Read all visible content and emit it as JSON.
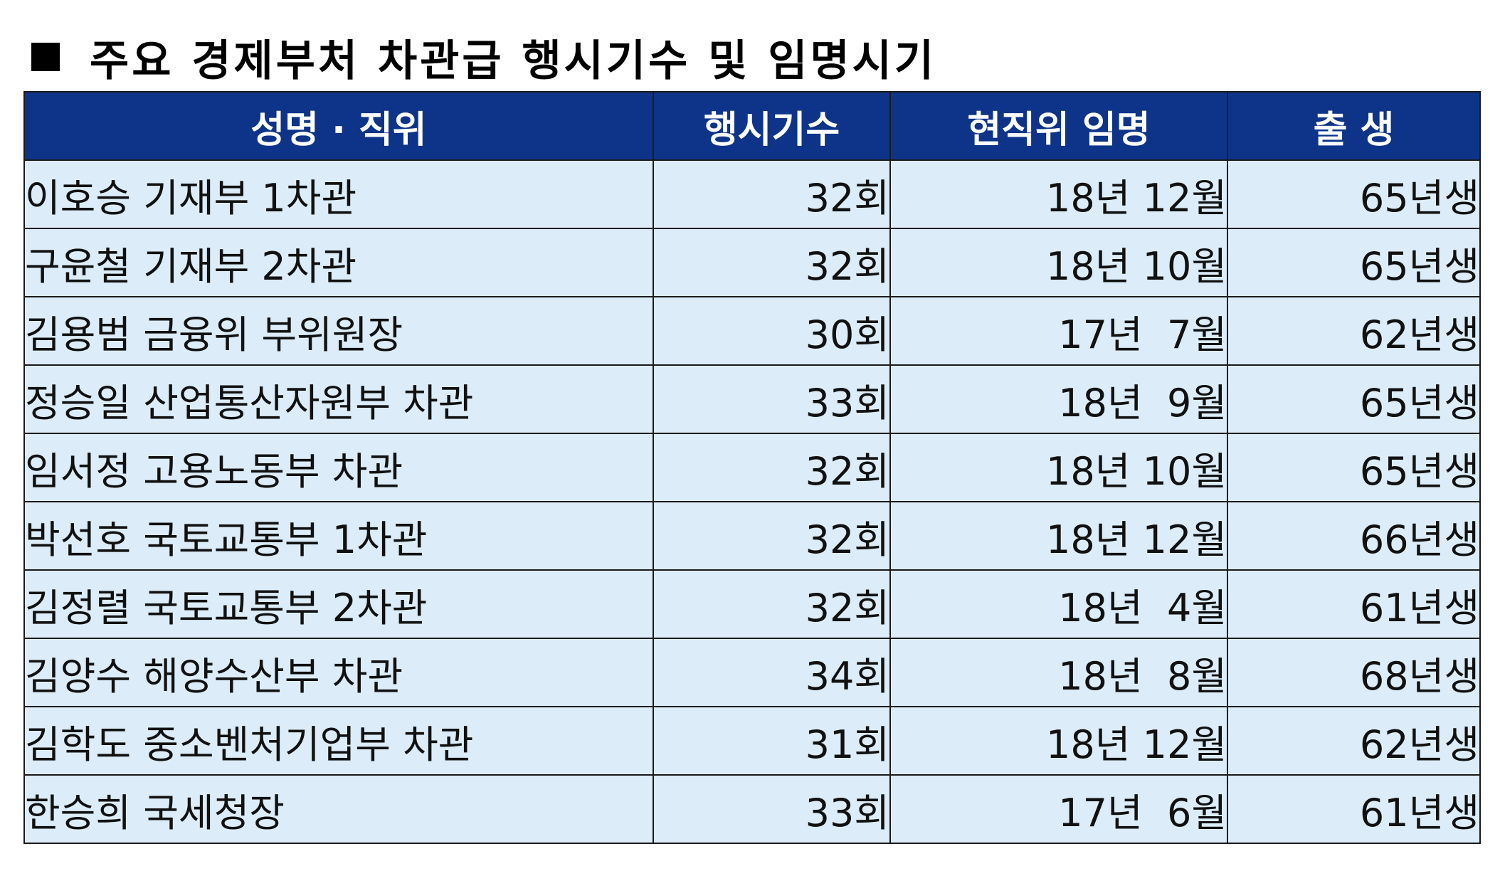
{
  "title": "주요 경제부처 차관급 행시기수 및 임명시기",
  "table": {
    "headers": [
      "성명 · 직위",
      "행시기수",
      "현직위 임명",
      "출 생"
    ],
    "rows": [
      {
        "name": "이호승 기재부 1차관",
        "exam": "32회",
        "appointed": "18년 12월",
        "born": "65년생"
      },
      {
        "name": "구윤철 기재부 2차관",
        "exam": "32회",
        "appointed": "18년 10월",
        "born": "65년생"
      },
      {
        "name": "김용범 금융위 부위원장",
        "exam": "30회",
        "appointed": "17년  7월",
        "born": "62년생"
      },
      {
        "name": "정승일 산업통산자원부 차관",
        "exam": "33회",
        "appointed": "18년  9월",
        "born": "65년생"
      },
      {
        "name": "임서정 고용노동부 차관",
        "exam": "32회",
        "appointed": "18년 10월",
        "born": "65년생"
      },
      {
        "name": "박선호 국토교통부 1차관",
        "exam": "32회",
        "appointed": "18년 12월",
        "born": "66년생"
      },
      {
        "name": "김정렬 국토교통부 2차관",
        "exam": "32회",
        "appointed": "18년  4월",
        "born": "61년생"
      },
      {
        "name": "김양수 해양수산부 차관",
        "exam": "34회",
        "appointed": "18년  8월",
        "born": "68년생"
      },
      {
        "name": "김학도 중소벤처기업부 차관",
        "exam": "31회",
        "appointed": "18년 12월",
        "born": "62년생"
      },
      {
        "name": "한승희 국세청장",
        "exam": "33회",
        "appointed": "17년  6월",
        "born": "61년생"
      }
    ]
  },
  "colors": {
    "header_bg": "#0e3489",
    "row_bg": "#dcedf9"
  }
}
